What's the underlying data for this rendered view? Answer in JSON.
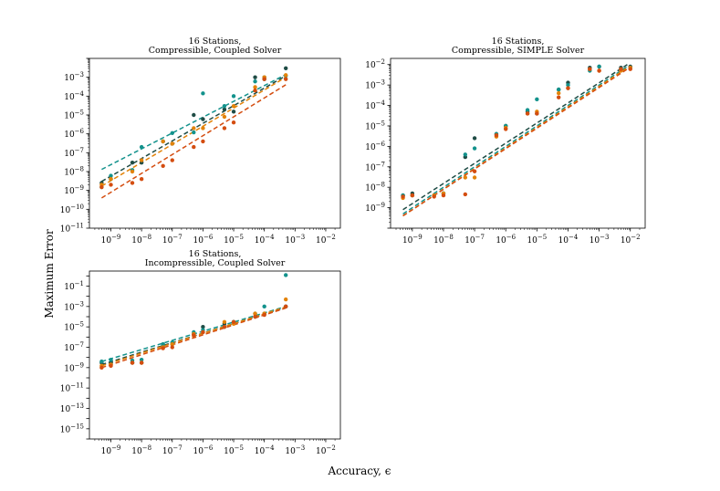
{
  "figure": {
    "ylabel": "Maximum Error",
    "xlabel": "Accuracy, ϵ"
  },
  "chart_data": [
    {
      "type": "scatter",
      "title": [
        "16 Stations,",
        "Compressible, Coupled Solver"
      ],
      "xscale": "log",
      "yscale": "log",
      "xlim": [
        2e-10,
        0.03
      ],
      "ylim": [
        1e-11,
        0.01
      ],
      "xticks": [
        -9,
        -8,
        -7,
        -6,
        -5,
        -4,
        -3,
        -2
      ],
      "yticks": [
        -11,
        -10,
        -9,
        -8,
        -7,
        -6,
        -5,
        -4,
        -3
      ],
      "grid": false,
      "series": [
        {
          "color": "#1f4c45",
          "points": [
            [
              5e-10,
              2.5e-09
            ],
            [
              1e-09,
              4e-09
            ],
            [
              5e-09,
              3e-08
            ],
            [
              1e-08,
              3e-08
            ],
            [
              5e-08,
              4e-07
            ],
            [
              1e-07,
              3e-07
            ],
            [
              5e-07,
              1e-05
            ],
            [
              1e-06,
              6e-06
            ],
            [
              5e-06,
              2e-05
            ],
            [
              1e-05,
              1.5e-05
            ],
            [
              5e-05,
              0.001
            ],
            [
              0.0001,
              0.0008
            ],
            [
              0.0005,
              0.003
            ]
          ],
          "fit": [
            [
              5e-10,
              3e-09
            ],
            [
              0.0005,
              0.0012
            ]
          ]
        },
        {
          "color": "#13928c",
          "points": [
            [
              5e-10,
              1.5e-09
            ],
            [
              1e-09,
              6e-09
            ],
            [
              5e-09,
              1.2e-08
            ],
            [
              1e-08,
              2e-07
            ],
            [
              5e-08,
              4e-07
            ],
            [
              1e-07,
              1.1e-06
            ],
            [
              5e-07,
              1.2e-06
            ],
            [
              1e-06,
              0.00014
            ],
            [
              5e-06,
              3e-05
            ],
            [
              1e-05,
              0.0001
            ],
            [
              5e-05,
              0.0006
            ],
            [
              0.0001,
              0.001
            ],
            [
              0.0005,
              0.0012
            ]
          ],
          "fit": [
            [
              5e-10,
              1.3e-08
            ],
            [
              0.0005,
              0.0014
            ]
          ]
        },
        {
          "color": "#e38309",
          "points": [
            [
              5e-10,
              2e-09
            ],
            [
              1e-09,
              4e-09
            ],
            [
              5e-09,
              1e-08
            ],
            [
              1e-08,
              4e-08
            ],
            [
              5e-08,
              4e-07
            ],
            [
              1e-07,
              3e-07
            ],
            [
              5e-07,
              2e-06
            ],
            [
              1e-06,
              2e-06
            ],
            [
              5e-06,
              8e-06
            ],
            [
              1e-05,
              3e-05
            ],
            [
              5e-05,
              0.0003
            ],
            [
              0.0001,
              0.001
            ],
            [
              0.0005,
              0.0013
            ]
          ],
          "fit": [
            [
              5e-10,
              1.7e-09
            ],
            [
              0.0005,
              0.001
            ]
          ]
        },
        {
          "color": "#d44d10",
          "points": [
            [
              5e-10,
              1.5e-09
            ],
            [
              1e-09,
              2e-09
            ],
            [
              5e-09,
              2.5e-09
            ],
            [
              1e-08,
              4e-09
            ],
            [
              5e-08,
              2e-08
            ],
            [
              1e-07,
              4e-08
            ],
            [
              5e-07,
              2e-07
            ],
            [
              1e-06,
              4e-07
            ],
            [
              5e-06,
              2e-06
            ],
            [
              1e-05,
              4e-06
            ],
            [
              5e-05,
              0.0002
            ],
            [
              0.0001,
              0.0008
            ],
            [
              0.0005,
              0.0008
            ]
          ],
          "fit": [
            [
              5e-10,
              4e-10
            ],
            [
              0.0005,
              0.0004
            ]
          ]
        }
      ]
    },
    {
      "type": "scatter",
      "title": [
        "16 Stations,",
        "Compressible, SIMPLE Solver"
      ],
      "xscale": "log",
      "yscale": "log",
      "xlim": [
        2e-10,
        0.03
      ],
      "ylim": [
        1e-10,
        0.02
      ],
      "xticks": [
        -9,
        -8,
        -7,
        -6,
        -5,
        -4,
        -3,
        -2
      ],
      "yticks": [
        -9,
        -8,
        -7,
        -6,
        -5,
        -4,
        -3,
        -2
      ],
      "grid": false,
      "series": [
        {
          "color": "#1f4c45",
          "points": [
            [
              5e-10,
              4e-09
            ],
            [
              1e-09,
              5e-09
            ],
            [
              5e-09,
              4e-09
            ],
            [
              1e-08,
              5e-09
            ],
            [
              5e-08,
              3e-07
            ],
            [
              1e-07,
              2.5e-06
            ],
            [
              5e-07,
              4e-06
            ],
            [
              1e-06,
              1e-05
            ],
            [
              5e-06,
              5e-05
            ],
            [
              1e-05,
              4e-05
            ],
            [
              5e-05,
              0.0006
            ],
            [
              0.0001,
              0.0013
            ],
            [
              0.0005,
              0.007
            ],
            [
              0.001,
              0.008
            ],
            [
              0.005,
              0.007
            ],
            [
              0.01,
              0.008
            ]
          ],
          "fit": [
            [
              5e-10,
              8e-10
            ],
            [
              0.008,
              0.01
            ]
          ]
        },
        {
          "color": "#13928c",
          "points": [
            [
              5e-10,
              4e-09
            ],
            [
              1e-09,
              4e-09
            ],
            [
              5e-09,
              4e-09
            ],
            [
              1e-08,
              5e-09
            ],
            [
              5e-08,
              4e-07
            ],
            [
              1e-07,
              8e-07
            ],
            [
              5e-07,
              4e-06
            ],
            [
              1e-06,
              1e-05
            ],
            [
              5e-06,
              6e-05
            ],
            [
              1e-05,
              0.0002
            ],
            [
              5e-05,
              0.0006
            ],
            [
              0.0001,
              0.001
            ],
            [
              0.0005,
              0.005
            ],
            [
              0.001,
              0.008
            ],
            [
              0.005,
              0.006
            ],
            [
              0.01,
              0.007
            ]
          ],
          "fit": [
            [
              5e-10,
              5e-10
            ],
            [
              0.008,
              0.008
            ]
          ]
        },
        {
          "color": "#e38309",
          "points": [
            [
              5e-10,
              3e-09
            ],
            [
              1e-09,
              4e-09
            ],
            [
              5e-09,
              4e-09
            ],
            [
              1e-08,
              5e-09
            ],
            [
              5e-08,
              3e-08
            ],
            [
              1e-07,
              3e-08
            ],
            [
              5e-07,
              3e-06
            ],
            [
              1e-06,
              8e-06
            ],
            [
              5e-06,
              4e-05
            ],
            [
              1e-05,
              5e-05
            ],
            [
              5e-05,
              0.0004
            ],
            [
              0.0001,
              0.0007
            ],
            [
              0.0005,
              0.006
            ],
            [
              0.001,
              0.005
            ],
            [
              0.005,
              0.005
            ],
            [
              0.01,
              0.007
            ]
          ],
          "fit": [
            [
              5e-10,
              4e-10
            ],
            [
              0.008,
              0.007
            ]
          ]
        },
        {
          "color": "#d44d10",
          "points": [
            [
              5e-10,
              3.5e-09
            ],
            [
              1e-09,
              4e-09
            ],
            [
              5e-09,
              3.5e-09
            ],
            [
              1e-08,
              4e-09
            ],
            [
              5e-08,
              4.5e-09
            ],
            [
              1e-07,
              6e-08
            ],
            [
              5e-07,
              3.5e-06
            ],
            [
              1e-06,
              7e-06
            ],
            [
              5e-06,
              4e-05
            ],
            [
              1e-05,
              4e-05
            ],
            [
              5e-05,
              0.00025
            ],
            [
              0.0001,
              0.0007
            ],
            [
              0.0005,
              0.006
            ],
            [
              0.001,
              0.005
            ],
            [
              0.005,
              0.006
            ],
            [
              0.01,
              0.006
            ]
          ],
          "fit": [
            [
              5e-10,
              4e-10
            ],
            [
              0.008,
              0.006
            ]
          ]
        }
      ]
    },
    {
      "type": "scatter",
      "title": [
        "16 Stations,",
        "Incompressible, Coupled Solver"
      ],
      "xscale": "log",
      "yscale": "log",
      "xlim": [
        2e-10,
        0.03
      ],
      "ylim": [
        1e-16,
        3.0
      ],
      "xticks": [
        -9,
        -8,
        -7,
        -6,
        -5,
        -4,
        -3,
        -2
      ],
      "yticks": [
        -15,
        -13,
        -11,
        -9,
        -7,
        -5,
        -3,
        -1
      ],
      "grid": false,
      "series": [
        {
          "color": "#1f4c45",
          "points": [
            [
              5e-10,
              3e-09
            ],
            [
              1e-09,
              3e-09
            ],
            [
              5e-09,
              3e-09
            ],
            [
              1e-08,
              3e-09
            ],
            [
              5e-08,
              1e-07
            ],
            [
              1e-07,
              2e-07
            ],
            [
              5e-07,
              2e-06
            ],
            [
              1e-06,
              1e-05
            ],
            [
              5e-06,
              2e-05
            ],
            [
              1e-05,
              3e-05
            ],
            [
              5e-05,
              0.0001
            ],
            [
              0.0001,
              0.0002
            ],
            [
              0.0005,
              0.001
            ]
          ],
          "fit": [
            [
              5e-10,
              2e-09
            ],
            [
              0.0005,
              0.0008
            ]
          ]
        },
        {
          "color": "#13928c",
          "points": [
            [
              5e-10,
              4e-09
            ],
            [
              1e-09,
              6e-09
            ],
            [
              5e-09,
              5e-09
            ],
            [
              1e-08,
              6e-09
            ],
            [
              5e-08,
              2e-07
            ],
            [
              1e-07,
              3e-07
            ],
            [
              5e-07,
              3e-06
            ],
            [
              1e-06,
              5e-06
            ],
            [
              5e-06,
              1e-05
            ],
            [
              1e-05,
              3e-05
            ],
            [
              5e-05,
              0.0002
            ],
            [
              0.0001,
              0.001
            ],
            [
              0.0005,
              1.2
            ]
          ],
          "fit": [
            [
              5e-10,
              4e-09
            ],
            [
              0.0005,
              0.001
            ]
          ]
        },
        {
          "color": "#e38309",
          "points": [
            [
              5e-10,
              1.5e-09
            ],
            [
              1e-09,
              2e-09
            ],
            [
              5e-09,
              3e-09
            ],
            [
              1e-08,
              3e-09
            ],
            [
              5e-08,
              1e-07
            ],
            [
              1e-07,
              2e-07
            ],
            [
              5e-07,
              2e-06
            ],
            [
              1e-06,
              3e-06
            ],
            [
              5e-06,
              3e-05
            ],
            [
              1e-05,
              2e-05
            ],
            [
              5e-05,
              0.0002
            ],
            [
              0.0001,
              0.0002
            ],
            [
              0.0005,
              0.005
            ]
          ],
          "fit": [
            [
              5e-10,
              1.5e-09
            ],
            [
              0.0005,
              0.0009
            ]
          ]
        },
        {
          "color": "#d44d10",
          "points": [
            [
              5e-10,
              1e-09
            ],
            [
              1e-09,
              1.5e-09
            ],
            [
              5e-09,
              3e-09
            ],
            [
              1e-08,
              3e-09
            ],
            [
              5e-08,
              8e-08
            ],
            [
              1e-07,
              1e-07
            ],
            [
              5e-07,
              1.5e-06
            ],
            [
              1e-06,
              3e-06
            ],
            [
              5e-06,
              1e-05
            ],
            [
              1e-05,
              3e-05
            ],
            [
              5e-05,
              0.0001
            ],
            [
              0.0001,
              0.00015
            ],
            [
              0.0005,
              0.001
            ]
          ],
          "fit": [
            [
              5e-10,
              1e-09
            ],
            [
              0.0005,
              0.0007
            ]
          ]
        }
      ]
    }
  ]
}
